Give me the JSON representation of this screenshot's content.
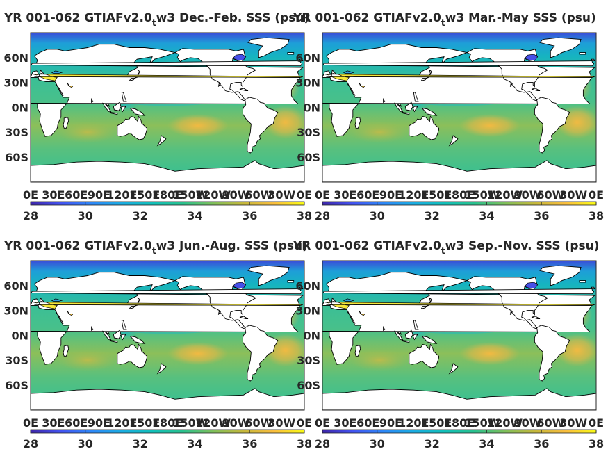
{
  "figure": {
    "colormap": [
      "#3e26a8",
      "#4353f0",
      "#2e87f7",
      "#1bace1",
      "#12bfb9",
      "#29c08d",
      "#7fbf5b",
      "#c5b73c",
      "#f9bd3e",
      "#f9fb15"
    ],
    "land_color": "#ffffff",
    "coast_color": "#000000"
  },
  "chart_data": [
    {
      "type": "heatmap",
      "title_main": "YR 001-062 GTIAFv2.0",
      "title_sub": "t",
      "title_tail": "w3 Dec.-Feb. SSS (psu)",
      "variable": "SSS",
      "unit": "psu",
      "x_ticks": [
        "0E",
        "30E",
        "60E",
        "90E",
        "120E",
        "150E",
        "180E",
        "150W",
        "120W",
        "90W",
        "60W",
        "30W",
        "0E"
      ],
      "y_ticks": [
        "60N",
        "30N",
        "0N",
        "30S",
        "60S"
      ],
      "colorbar_ticks": [
        "28",
        "30",
        "32",
        "34",
        "36",
        "38"
      ],
      "clim": [
        28,
        38
      ],
      "grid": false
    },
    {
      "type": "heatmap",
      "title_main": "YR 001-062 GTIAFv2.0",
      "title_sub": "t",
      "title_tail": "w3 Mar.-May SSS (psu)",
      "variable": "SSS",
      "unit": "psu",
      "x_ticks": [
        "0E",
        "30E",
        "60E",
        "90E",
        "120E",
        "150E",
        "180E",
        "150W",
        "120W",
        "90W",
        "60W",
        "30W",
        "0E"
      ],
      "y_ticks": [
        "60N",
        "30N",
        "0N",
        "30S",
        "60S"
      ],
      "colorbar_ticks": [
        "28",
        "30",
        "32",
        "34",
        "36",
        "38"
      ],
      "clim": [
        28,
        38
      ],
      "grid": false
    },
    {
      "type": "heatmap",
      "title_main": "YR 001-062 GTIAFv2.0",
      "title_sub": "t",
      "title_tail": "w3 Jun.-Aug. SSS (psu)",
      "variable": "SSS",
      "unit": "psu",
      "x_ticks": [
        "0E",
        "30E",
        "60E",
        "90E",
        "120E",
        "150E",
        "180E",
        "150W",
        "120W",
        "90W",
        "60W",
        "30W",
        "0E"
      ],
      "y_ticks": [
        "60N",
        "30N",
        "0N",
        "30S",
        "60S"
      ],
      "colorbar_ticks": [
        "28",
        "30",
        "32",
        "34",
        "36",
        "38"
      ],
      "clim": [
        28,
        38
      ],
      "grid": false
    },
    {
      "type": "heatmap",
      "title_main": "YR 001-062 GTIAFv2.0",
      "title_sub": "t",
      "title_tail": "w3 Sep.-Nov. SSS (psu)",
      "variable": "SSS",
      "unit": "psu",
      "x_ticks": [
        "0E",
        "30E",
        "60E",
        "90E",
        "120E",
        "150E",
        "180E",
        "150W",
        "120W",
        "90W",
        "60W",
        "30W",
        "0E"
      ],
      "y_ticks": [
        "60N",
        "30N",
        "0N",
        "30S",
        "60S"
      ],
      "colorbar_ticks": [
        "28",
        "30",
        "32",
        "34",
        "36",
        "38"
      ],
      "clim": [
        28,
        38
      ],
      "grid": false
    }
  ]
}
